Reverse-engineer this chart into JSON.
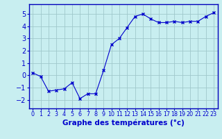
{
  "x": [
    0,
    1,
    2,
    3,
    4,
    5,
    6,
    7,
    8,
    9,
    10,
    11,
    12,
    13,
    14,
    15,
    16,
    17,
    18,
    19,
    20,
    21,
    22,
    23
  ],
  "y": [
    0.2,
    -0.1,
    -1.3,
    -1.2,
    -1.1,
    -0.6,
    -1.9,
    -1.5,
    -1.5,
    0.4,
    2.5,
    3.0,
    3.9,
    4.8,
    5.0,
    4.6,
    4.3,
    4.3,
    4.4,
    4.3,
    4.4,
    4.4,
    4.8,
    5.1
  ],
  "xlim": [
    -0.5,
    23.5
  ],
  "ylim": [
    -2.7,
    5.8
  ],
  "yticks": [
    -2,
    -1,
    0,
    1,
    2,
    3,
    4,
    5
  ],
  "xtick_labels": [
    "0",
    "1",
    "2",
    "3",
    "4",
    "5",
    "6",
    "7",
    "8",
    "9",
    "10",
    "11",
    "12",
    "13",
    "14",
    "15",
    "16",
    "17",
    "18",
    "19",
    "20",
    "21",
    "22",
    "23"
  ],
  "xlabel": "Graphe des températures (°c)",
  "line_color": "#0000cc",
  "marker_color": "#0000cc",
  "bg_color": "#c8eef0",
  "grid_color": "#a0c8cc",
  "axis_color": "#0000bb",
  "tick_color": "#0000cc",
  "label_color": "#0000cc",
  "xlabel_fontsize": 7.5,
  "ytick_fontsize": 7,
  "xtick_fontsize": 5.8
}
